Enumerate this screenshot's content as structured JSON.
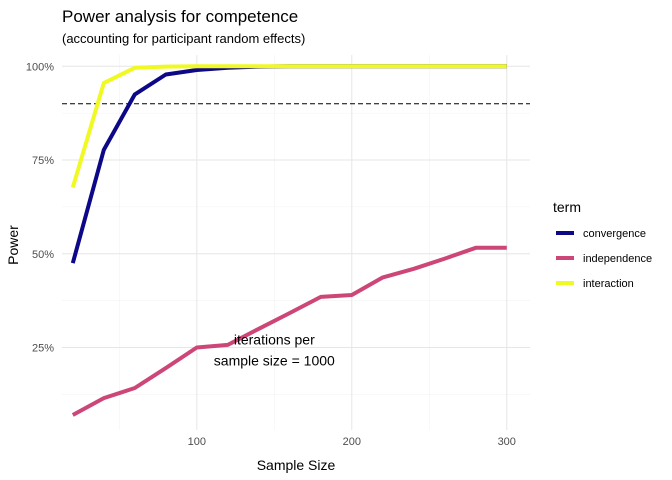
{
  "chart_data": {
    "type": "line",
    "title": "Power analysis for competence",
    "subtitle": "(accounting for participant random effects)",
    "xlabel": "Sample Size",
    "ylabel": "Power",
    "xlim": [
      13,
      315
    ],
    "ylim": [
      0.03,
      1.03
    ],
    "x_ticks": [
      100,
      200,
      300
    ],
    "x_tick_labels": [
      "100",
      "200",
      "300"
    ],
    "y_ticks": [
      0.25,
      0.5,
      0.75,
      1.0
    ],
    "y_tick_labels": [
      "25%",
      "50%",
      "75%",
      "100%"
    ],
    "grid": true,
    "reference_line": {
      "y": 0.9,
      "style": "dashed"
    },
    "annotation": {
      "lines": [
        "iterations per",
        "sample size = 1000"
      ],
      "x": 150,
      "y": 0.25
    },
    "legend": {
      "title": "term",
      "position": "right"
    },
    "x": [
      20,
      40,
      60,
      80,
      100,
      120,
      140,
      160,
      180,
      200,
      220,
      240,
      260,
      280,
      300
    ],
    "series": [
      {
        "name": "convergence",
        "color": "#0d0887",
        "values": [
          0.475,
          0.777,
          0.925,
          0.978,
          0.99,
          0.996,
          0.999,
          1.0,
          1.0,
          1.0,
          1.0,
          1.0,
          1.0,
          1.0,
          1.0
        ]
      },
      {
        "name": "independence",
        "color": "#cc4778",
        "values": [
          0.07,
          0.115,
          0.142,
          0.195,
          0.25,
          0.257,
          0.3,
          0.342,
          0.385,
          0.39,
          0.437,
          0.46,
          0.487,
          0.516,
          0.516
        ]
      },
      {
        "name": "interaction",
        "color": "#f0f921",
        "values": [
          0.677,
          0.955,
          0.996,
          0.999,
          1.0,
          1.0,
          1.0,
          1.0,
          1.0,
          1.0,
          1.0,
          1.0,
          1.0,
          1.0,
          1.0
        ]
      }
    ]
  }
}
